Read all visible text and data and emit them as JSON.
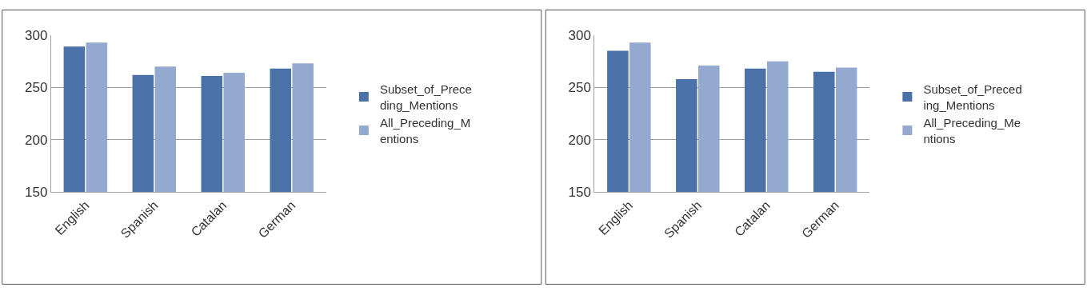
{
  "chart_data": [
    {
      "type": "bar",
      "categories": [
        "English",
        "Spanish",
        "Catalan",
        "German"
      ],
      "series": [
        {
          "name": "Subset_of_Preceding_Mentions",
          "color": "#4a72a8",
          "values": [
            289,
            262,
            261,
            268
          ]
        },
        {
          "name": "All_Preceding_Mentions",
          "color": "#93a9d0",
          "values": [
            293,
            270,
            264,
            273
          ]
        }
      ],
      "ylim": [
        150,
        300
      ],
      "yticks": [
        150,
        200,
        250,
        300
      ],
      "grid": "y",
      "legend": "right"
    },
    {
      "type": "bar",
      "categories": [
        "English",
        "Spanish",
        "Catalan",
        "German"
      ],
      "series": [
        {
          "name": "Subset_of_Preceding_Mentions",
          "color": "#4a72a8",
          "values": [
            285,
            258,
            268,
            265
          ]
        },
        {
          "name": "All_Preceding_Mentions",
          "color": "#93a9d0",
          "values": [
            293,
            271,
            275,
            269
          ]
        }
      ],
      "ylim": [
        150,
        300
      ],
      "yticks": [
        150,
        200,
        250,
        300
      ],
      "grid": "y",
      "legend": "right"
    }
  ]
}
